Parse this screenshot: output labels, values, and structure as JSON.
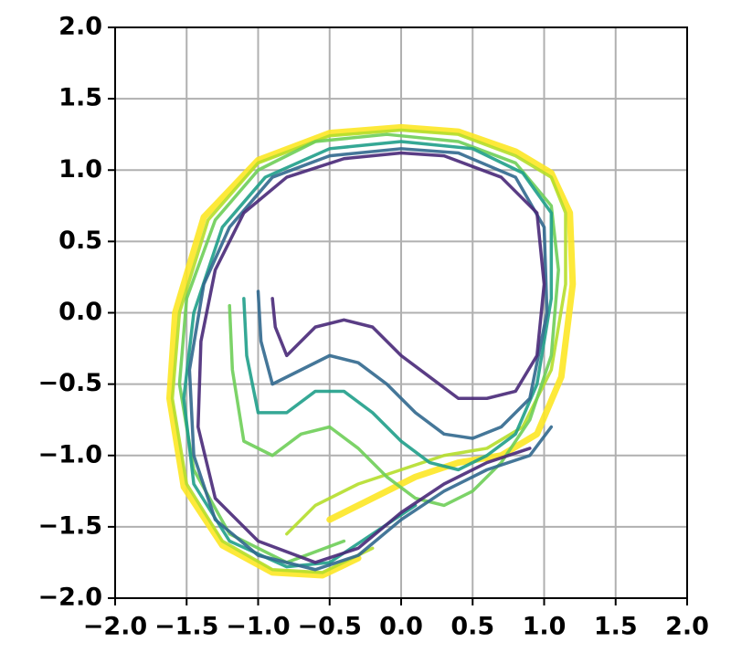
{
  "chart_data": {
    "type": "line",
    "grid": true,
    "xlim": [
      -2,
      2
    ],
    "ylim": [
      -2,
      2
    ],
    "xticks": [
      {
        "value": -2,
        "label": "−2.0"
      },
      {
        "value": -1.5,
        "label": "−1.5"
      },
      {
        "value": -1,
        "label": "−1.0"
      },
      {
        "value": -0.5,
        "label": "−0.5"
      },
      {
        "value": 0,
        "label": "0.0"
      },
      0.5,
      {
        "value": 1,
        "label": "1.0"
      },
      1.5,
      {
        "value": 2,
        "label": "2.0"
      }
    ],
    "yticks": [
      {
        "value": -2,
        "label": "−2.0"
      },
      {
        "value": -1.5,
        "label": "−1.5"
      },
      {
        "value": -1,
        "label": "−1.0"
      },
      {
        "value": -0.5,
        "label": "−0.5"
      },
      {
        "value": 0,
        "label": "0.0"
      },
      0.5,
      {
        "value": 1,
        "label": "1.0"
      },
      1.5,
      {
        "value": 2,
        "label": "2.0"
      }
    ],
    "series": [
      {
        "color": "#fde725",
        "x": [
          -0.5,
          -0.2,
          0.1,
          0.4,
          0.7,
          0.95,
          1.12,
          1.2,
          1.18,
          1.05,
          0.8,
          0.4,
          0.0,
          -0.5,
          -1.0,
          -1.38,
          -1.58,
          -1.62,
          -1.52,
          -1.25,
          -0.9,
          -0.55,
          -0.3
        ],
        "y": [
          -1.45,
          -1.3,
          -1.15,
          -1.05,
          -1.0,
          -0.85,
          -0.45,
          0.2,
          0.7,
          0.98,
          1.13,
          1.27,
          1.3,
          1.26,
          1.07,
          0.67,
          0.0,
          -0.6,
          -1.22,
          -1.63,
          -1.82,
          -1.84,
          -1.72
        ]
      },
      {
        "color": "#b5de2b",
        "x": [
          -0.8,
          -0.6,
          -0.3,
          0.0,
          0.3,
          0.6,
          0.85,
          1.05,
          1.15,
          1.15,
          1.05,
          0.8,
          0.4,
          0.0,
          -0.5,
          -1.0,
          -1.35,
          -1.55,
          -1.6,
          -1.5,
          -1.25,
          -0.9,
          -0.55,
          -0.2
        ],
        "y": [
          -1.55,
          -1.35,
          -1.2,
          -1.1,
          -1.0,
          -0.95,
          -0.8,
          -0.4,
          0.2,
          0.7,
          0.95,
          1.1,
          1.25,
          1.28,
          1.24,
          1.05,
          0.65,
          0.0,
          -0.6,
          -1.2,
          -1.6,
          -1.8,
          -1.82,
          -1.65
        ]
      },
      {
        "color": "#6ece58",
        "x": [
          -1.2,
          -1.18,
          -1.1,
          -0.9,
          -0.7,
          -0.5,
          -0.3,
          -0.1,
          0.1,
          0.3,
          0.5,
          0.7,
          0.9,
          1.05,
          1.1,
          1.05,
          0.8,
          0.4,
          -0.1,
          -0.6,
          -1.0,
          -1.3,
          -1.5,
          -1.55,
          -1.45,
          -1.2,
          -0.8,
          -0.4
        ],
        "y": [
          0.05,
          -0.4,
          -0.9,
          -1.0,
          -0.85,
          -0.8,
          -0.95,
          -1.15,
          -1.3,
          -1.35,
          -1.25,
          -1.05,
          -0.75,
          -0.3,
          0.3,
          0.75,
          1.05,
          1.2,
          1.25,
          1.2,
          1.0,
          0.65,
          0.1,
          -0.5,
          -1.1,
          -1.55,
          -1.75,
          -1.6
        ]
      },
      {
        "color": "#1f9e89",
        "x": [
          -1.1,
          -1.08,
          -1.0,
          -0.8,
          -0.6,
          -0.4,
          -0.2,
          0.0,
          0.2,
          0.4,
          0.6,
          0.8,
          0.95,
          1.05,
          1.05,
          0.85,
          0.5,
          0.0,
          -0.5,
          -0.95,
          -1.25,
          -1.45,
          -1.52,
          -1.45,
          -1.2,
          -0.8,
          -0.5,
          -0.2,
          0.1
        ],
        "y": [
          0.1,
          -0.3,
          -0.7,
          -0.7,
          -0.55,
          -0.55,
          -0.7,
          -0.9,
          -1.05,
          -1.1,
          -1.0,
          -0.85,
          -0.5,
          0.1,
          0.7,
          0.98,
          1.15,
          1.2,
          1.15,
          0.95,
          0.6,
          0.0,
          -0.6,
          -1.2,
          -1.6,
          -1.78,
          -1.75,
          -1.55,
          -1.35
        ]
      },
      {
        "color": "#31688e",
        "x": [
          -1.0,
          -0.98,
          -0.9,
          -0.7,
          -0.5,
          -0.3,
          -0.1,
          0.1,
          0.3,
          0.5,
          0.7,
          0.9,
          1.02,
          1.0,
          0.8,
          0.4,
          0.0,
          -0.5,
          -0.9,
          -1.2,
          -1.38,
          -1.48,
          -1.45,
          -1.3,
          -1.0,
          -0.6,
          -0.3,
          0.0,
          0.3,
          0.6,
          0.9,
          1.05
        ],
        "y": [
          0.15,
          -0.2,
          -0.5,
          -0.4,
          -0.3,
          -0.35,
          -0.5,
          -0.7,
          -0.85,
          -0.88,
          -0.8,
          -0.6,
          0.0,
          0.6,
          0.95,
          1.12,
          1.15,
          1.1,
          0.95,
          0.6,
          0.2,
          -0.4,
          -1.0,
          -1.45,
          -1.7,
          -1.8,
          -1.7,
          -1.45,
          -1.25,
          -1.1,
          -1.0,
          -0.8
        ]
      },
      {
        "color": "#482878",
        "x": [
          -0.9,
          -0.88,
          -0.8,
          -0.6,
          -0.4,
          -0.2,
          0.0,
          0.2,
          0.4,
          0.6,
          0.8,
          0.95,
          1.0,
          0.95,
          0.7,
          0.3,
          0.0,
          -0.4,
          -0.8,
          -1.1,
          -1.3,
          -1.4,
          -1.42,
          -1.3,
          -1.0,
          -0.6,
          -0.3,
          0.0,
          0.3,
          0.6,
          0.9
        ],
        "y": [
          0.1,
          -0.1,
          -0.3,
          -0.1,
          -0.05,
          -0.1,
          -0.3,
          -0.45,
          -0.6,
          -0.6,
          -0.55,
          -0.3,
          0.2,
          0.7,
          0.95,
          1.1,
          1.12,
          1.08,
          0.95,
          0.7,
          0.3,
          -0.2,
          -0.8,
          -1.3,
          -1.6,
          -1.75,
          -1.65,
          -1.4,
          -1.2,
          -1.05,
          -0.95
        ]
      }
    ]
  }
}
